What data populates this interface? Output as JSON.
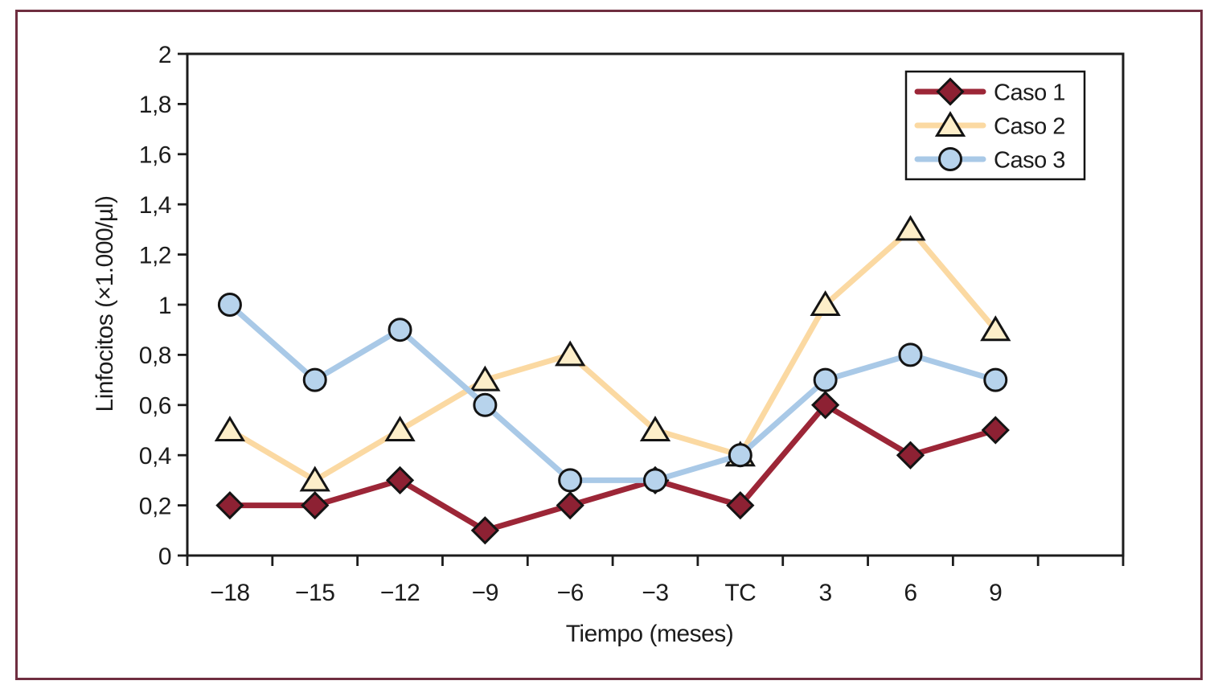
{
  "figure": {
    "frame_border_color": "#6f2e40",
    "background_color": "#ffffff",
    "ink_color": "#1c1c1c"
  },
  "chart_data": {
    "type": "line",
    "title": "",
    "xlabel": "Tiempo (meses)",
    "ylabel": "Linfocitos (×1.000/µl)",
    "categories": [
      "−18",
      "−15",
      "−12",
      "−9",
      "−6",
      "−3",
      "TC",
      "3",
      "6",
      "9"
    ],
    "ylim": [
      0,
      2
    ],
    "ytick_step": 0.2,
    "ytick_labels": [
      "0",
      "0,2",
      "0,4",
      "0,6",
      "0,8",
      "1",
      "1,2",
      "1,4",
      "1,6",
      "1,8",
      "2"
    ],
    "grid": false,
    "legend_position": "top-right",
    "legend_entries": [
      "Caso 1",
      "Caso 2",
      "Caso 3"
    ],
    "series": [
      {
        "name": "Caso 1",
        "marker": "diamond",
        "line_color": "#9c2637",
        "marker_fill": "#8d2133",
        "values": [
          0.2,
          0.2,
          0.3,
          0.1,
          0.2,
          0.3,
          0.2,
          0.6,
          0.4,
          0.5
        ]
      },
      {
        "name": "Caso 2",
        "marker": "triangle",
        "line_color": "#fbd9a2",
        "marker_fill": "#fdeec9",
        "values": [
          0.5,
          0.3,
          0.5,
          0.7,
          0.8,
          0.5,
          0.4,
          1.0,
          1.3,
          0.9
        ]
      },
      {
        "name": "Caso 3",
        "marker": "circle",
        "line_color": "#a9c9e7",
        "marker_fill": "#b7d3ec",
        "values": [
          1.0,
          0.7,
          0.9,
          0.6,
          0.3,
          0.3,
          0.4,
          0.7,
          0.8,
          0.7
        ]
      }
    ]
  }
}
